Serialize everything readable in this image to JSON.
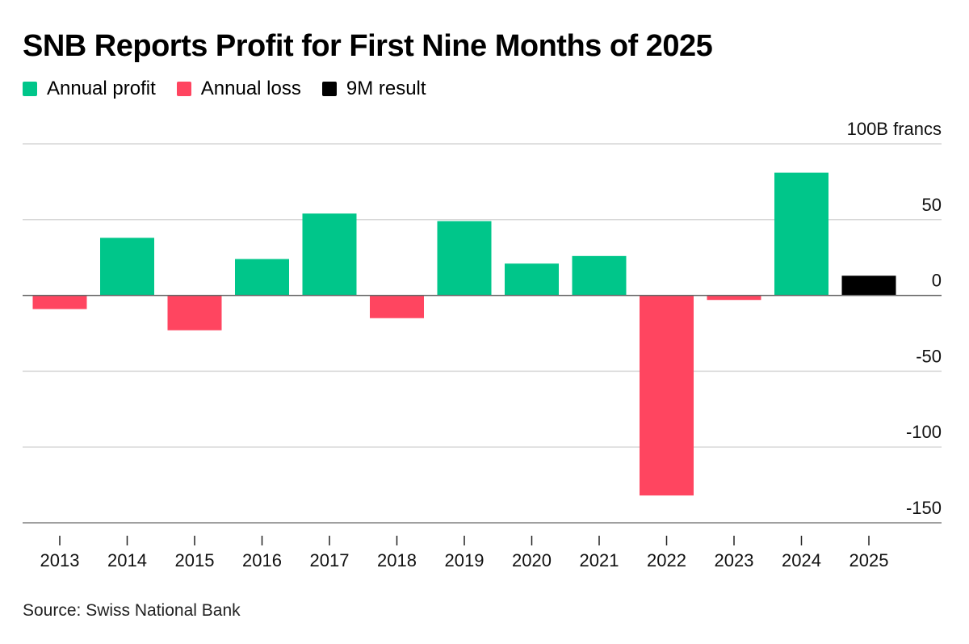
{
  "title": "SNB Reports Profit for First Nine Months of 2025",
  "legend": [
    {
      "label": "Annual profit",
      "color": "#00c68a"
    },
    {
      "label": "Annual loss",
      "color": "#ff4560"
    },
    {
      "label": "9M result",
      "color": "#000000"
    }
  ],
  "source": "Source: Swiss National Bank",
  "chart_data": {
    "type": "bar",
    "title": "SNB Reports Profit for First Nine Months of 2025",
    "unit_label": "100B francs",
    "xlabel": "",
    "ylabel": "",
    "categories": [
      "2013",
      "2014",
      "2015",
      "2016",
      "2017",
      "2018",
      "2019",
      "2020",
      "2021",
      "2022",
      "2023",
      "2024",
      "2025"
    ],
    "values": [
      -9,
      38,
      -23,
      24,
      54,
      -15,
      49,
      21,
      26,
      -132,
      -3,
      81,
      13
    ],
    "kinds": [
      "loss",
      "profit",
      "loss",
      "profit",
      "profit",
      "loss",
      "profit",
      "profit",
      "profit",
      "loss",
      "loss",
      "profit",
      "9m"
    ],
    "kind_colors": {
      "profit": "#00c68a",
      "loss": "#ff4560",
      "9m": "#000000"
    },
    "ylim": [
      -150,
      100
    ],
    "y_ticks": [
      {
        "value": 100,
        "label": "100B francs"
      },
      {
        "value": 50,
        "label": "50"
      },
      {
        "value": 0,
        "label": "0"
      },
      {
        "value": -50,
        "label": "-50"
      },
      {
        "value": -100,
        "label": "-100"
      },
      {
        "value": -150,
        "label": "-150"
      }
    ],
    "grid": true,
    "legend_position": "top-left"
  }
}
